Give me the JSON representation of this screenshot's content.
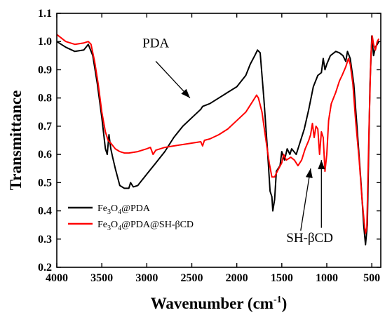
{
  "chart_data": {
    "type": "line",
    "xlabel": "Wavenumber (cm",
    "xlabel_sup": "-1",
    "xlabel_close": ")",
    "ylabel": "Transmittance",
    "xlim": [
      4000,
      400
    ],
    "ylim": [
      0.2,
      1.1
    ],
    "x_ticks": [
      4000,
      3500,
      3000,
      2500,
      2000,
      1500,
      1000,
      500
    ],
    "y_ticks": [
      0.2,
      0.3,
      0.4,
      0.5,
      0.6,
      0.7,
      0.8,
      0.9,
      1.0,
      1.1
    ],
    "y_tick_labels": [
      "0.2",
      "0.3",
      "0.4",
      "0.5",
      "0.6",
      "0.7",
      "0.8",
      "0.9",
      "1.0",
      "1.1"
    ],
    "grid": false,
    "legend_position": "bottom-left",
    "series": [
      {
        "name_parts": [
          "Fe",
          "3",
          "O",
          "4",
          "@PDA"
        ],
        "color": "#000000",
        "points": [
          [
            4000,
            1.0
          ],
          [
            3900,
            0.98
          ],
          [
            3800,
            0.965
          ],
          [
            3700,
            0.97
          ],
          [
            3650,
            0.99
          ],
          [
            3600,
            0.95
          ],
          [
            3550,
            0.85
          ],
          [
            3500,
            0.73
          ],
          [
            3460,
            0.62
          ],
          [
            3440,
            0.6
          ],
          [
            3420,
            0.67
          ],
          [
            3400,
            0.62
          ],
          [
            3380,
            0.59
          ],
          [
            3350,
            0.55
          ],
          [
            3300,
            0.49
          ],
          [
            3250,
            0.48
          ],
          [
            3200,
            0.48
          ],
          [
            3180,
            0.5
          ],
          [
            3150,
            0.485
          ],
          [
            3100,
            0.49
          ],
          [
            3050,
            0.51
          ],
          [
            3000,
            0.53
          ],
          [
            2900,
            0.57
          ],
          [
            2800,
            0.61
          ],
          [
            2700,
            0.66
          ],
          [
            2600,
            0.7
          ],
          [
            2500,
            0.73
          ],
          [
            2400,
            0.76
          ],
          [
            2380,
            0.77
          ],
          [
            2300,
            0.78
          ],
          [
            2200,
            0.8
          ],
          [
            2100,
            0.82
          ],
          [
            2000,
            0.84
          ],
          [
            1900,
            0.88
          ],
          [
            1850,
            0.92
          ],
          [
            1800,
            0.95
          ],
          [
            1770,
            0.97
          ],
          [
            1740,
            0.96
          ],
          [
            1700,
            0.8
          ],
          [
            1660,
            0.62
          ],
          [
            1630,
            0.47
          ],
          [
            1610,
            0.45
          ],
          [
            1600,
            0.4
          ],
          [
            1580,
            0.44
          ],
          [
            1560,
            0.54
          ],
          [
            1520,
            0.56
          ],
          [
            1500,
            0.61
          ],
          [
            1470,
            0.58
          ],
          [
            1440,
            0.62
          ],
          [
            1410,
            0.6
          ],
          [
            1390,
            0.62
          ],
          [
            1340,
            0.6
          ],
          [
            1300,
            0.64
          ],
          [
            1250,
            0.69
          ],
          [
            1200,
            0.76
          ],
          [
            1150,
            0.84
          ],
          [
            1100,
            0.88
          ],
          [
            1060,
            0.89
          ],
          [
            1040,
            0.94
          ],
          [
            1020,
            0.9
          ],
          [
            1000,
            0.92
          ],
          [
            960,
            0.95
          ],
          [
            900,
            0.965
          ],
          [
            860,
            0.96
          ],
          [
            820,
            0.95
          ],
          [
            790,
            0.93
          ],
          [
            770,
            0.965
          ],
          [
            740,
            0.94
          ],
          [
            700,
            0.85
          ],
          [
            660,
            0.68
          ],
          [
            620,
            0.5
          ],
          [
            590,
            0.35
          ],
          [
            570,
            0.28
          ],
          [
            550,
            0.35
          ],
          [
            520,
            0.85
          ],
          [
            500,
            1.02
          ],
          [
            480,
            0.95
          ],
          [
            460,
            0.98
          ],
          [
            440,
            0.99
          ],
          [
            420,
            1.0
          ]
        ]
      },
      {
        "name_parts": [
          "Fe",
          "3",
          "O",
          "4",
          "@PDA@SH-βCD"
        ],
        "color": "#ff0000",
        "points": [
          [
            4000,
            1.025
          ],
          [
            3900,
            1.0
          ],
          [
            3800,
            0.99
          ],
          [
            3700,
            0.995
          ],
          [
            3650,
            1.0
          ],
          [
            3620,
            0.99
          ],
          [
            3580,
            0.93
          ],
          [
            3540,
            0.85
          ],
          [
            3500,
            0.75
          ],
          [
            3460,
            0.68
          ],
          [
            3430,
            0.65
          ],
          [
            3400,
            0.64
          ],
          [
            3350,
            0.62
          ],
          [
            3300,
            0.61
          ],
          [
            3250,
            0.605
          ],
          [
            3200,
            0.605
          ],
          [
            3100,
            0.61
          ],
          [
            3000,
            0.62
          ],
          [
            2960,
            0.625
          ],
          [
            2930,
            0.6
          ],
          [
            2900,
            0.615
          ],
          [
            2850,
            0.62
          ],
          [
            2800,
            0.625
          ],
          [
            2700,
            0.63
          ],
          [
            2600,
            0.635
          ],
          [
            2500,
            0.64
          ],
          [
            2400,
            0.645
          ],
          [
            2380,
            0.63
          ],
          [
            2360,
            0.65
          ],
          [
            2300,
            0.655
          ],
          [
            2200,
            0.67
          ],
          [
            2100,
            0.69
          ],
          [
            2000,
            0.72
          ],
          [
            1900,
            0.75
          ],
          [
            1820,
            0.79
          ],
          [
            1780,
            0.81
          ],
          [
            1760,
            0.8
          ],
          [
            1720,
            0.75
          ],
          [
            1680,
            0.66
          ],
          [
            1640,
            0.57
          ],
          [
            1610,
            0.52
          ],
          [
            1580,
            0.52
          ],
          [
            1550,
            0.54
          ],
          [
            1500,
            0.57
          ],
          [
            1480,
            0.6
          ],
          [
            1450,
            0.58
          ],
          [
            1400,
            0.59
          ],
          [
            1360,
            0.58
          ],
          [
            1320,
            0.56
          ],
          [
            1280,
            0.58
          ],
          [
            1240,
            0.62
          ],
          [
            1200,
            0.65
          ],
          [
            1180,
            0.67
          ],
          [
            1160,
            0.71
          ],
          [
            1140,
            0.66
          ],
          [
            1120,
            0.7
          ],
          [
            1100,
            0.69
          ],
          [
            1080,
            0.6
          ],
          [
            1060,
            0.68
          ],
          [
            1040,
            0.66
          ],
          [
            1020,
            0.54
          ],
          [
            1000,
            0.6
          ],
          [
            980,
            0.72
          ],
          [
            950,
            0.78
          ],
          [
            900,
            0.82
          ],
          [
            860,
            0.86
          ],
          [
            830,
            0.88
          ],
          [
            790,
            0.91
          ],
          [
            760,
            0.94
          ],
          [
            740,
            0.92
          ],
          [
            710,
            0.85
          ],
          [
            680,
            0.72
          ],
          [
            640,
            0.58
          ],
          [
            610,
            0.45
          ],
          [
            585,
            0.36
          ],
          [
            570,
            0.32
          ],
          [
            555,
            0.34
          ],
          [
            530,
            0.7
          ],
          [
            510,
            0.95
          ],
          [
            495,
            1.02
          ],
          [
            480,
            0.99
          ],
          [
            460,
            0.97
          ],
          [
            440,
            1.0
          ],
          [
            420,
            1.01
          ]
        ]
      }
    ],
    "annotations": [
      {
        "text": "PDA",
        "label_at": [
          2900,
          0.98
        ],
        "arrow_from": [
          2900,
          0.93
        ],
        "arrow_to": [
          2520,
          0.8
        ]
      },
      {
        "text": "SH-βCD",
        "label_at": [
          1190,
          0.29
        ],
        "arrow_from": [
          1290,
          0.33
        ],
        "arrow_to": [
          1180,
          0.55
        ]
      },
      {
        "text": "",
        "label_at": [
          1060,
          0.29
        ],
        "arrow_from": [
          1060,
          0.34
        ],
        "arrow_to": [
          1060,
          0.58
        ]
      }
    ]
  }
}
